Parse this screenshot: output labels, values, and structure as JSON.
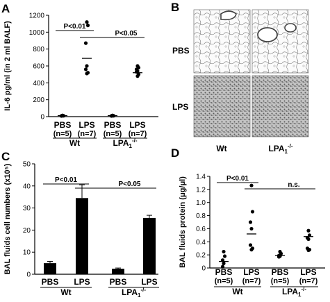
{
  "panels": [
    {
      "letter": "A",
      "chart_data": {
        "type": "scatter",
        "ylabel": "IL-6 pg/ml (in 2 ml BALF)",
        "ylim": [
          0,
          1200
        ],
        "yticks": [
          "0",
          "200",
          "400",
          "600",
          "800",
          "1000",
          "1200"
        ],
        "groups": [
          {
            "label": "PBS",
            "n": "(n=5)",
            "points": [
              15,
              10,
              8,
              12,
              9
            ],
            "mean": 12
          },
          {
            "label": "LPS",
            "n": "(n=7)",
            "points": [
              1120,
              1080,
              870,
              600,
              560,
              520,
              510
            ],
            "mean": 690
          },
          {
            "label": "PBS",
            "n": "(n=5)",
            "points": [
              15,
              10,
              8,
              12,
              9
            ],
            "mean": 12
          },
          {
            "label": "LPS",
            "n": "(n=7)",
            "points": [
              600,
              580,
              560,
              540,
              530,
              500,
              480
            ],
            "mean": 520
          }
        ],
        "genotypes": [
          "Wt",
          "LPA1-/-"
        ],
        "annotations": [
          {
            "text": "P<0.01",
            "between": [
              0,
              1
            ]
          },
          {
            "text": "P<0.05",
            "between": [
              1,
              3
            ]
          }
        ]
      }
    },
    {
      "letter": "B",
      "row_labels": [
        "PBS",
        "LPS"
      ],
      "col_labels": [
        "Wt",
        "LPA1-/-"
      ]
    },
    {
      "letter": "C",
      "chart_data": {
        "type": "bar",
        "ylabel": "BAL fluids cell numbers (x10⁵)",
        "ylim": [
          0,
          50
        ],
        "yticks": [
          "0",
          "10",
          "20",
          "30",
          "40",
          "50"
        ],
        "categories": [
          "PBS",
          "LPS",
          "PBS",
          "LPS"
        ],
        "values": [
          5.0,
          34.5,
          2.5,
          25.5
        ],
        "errors": [
          0.8,
          6.0,
          0.3,
          1.2
        ],
        "genotypes": [
          "Wt",
          "LPA1-/-"
        ],
        "annotations": [
          {
            "text": "P<0.01",
            "between": [
              0,
              1
            ]
          },
          {
            "text": "P<0.05",
            "between": [
              1,
              3
            ]
          }
        ]
      }
    },
    {
      "letter": "D",
      "chart_data": {
        "type": "scatter",
        "ylabel": "BAL fluids protein (μg/μl)",
        "ylim": [
          0,
          1.4
        ],
        "yticks": [
          "0",
          "0.2",
          "0.4",
          "0.6",
          "0.8",
          "1.0",
          "1.2",
          "1.4"
        ],
        "groups": [
          {
            "label": "PBS",
            "n": "(n=5)",
            "points": [
              0.25,
              0.18,
              0.12,
              0.07,
              0.02
            ],
            "mean": 0.1
          },
          {
            "label": "LPS",
            "n": "(n=7)",
            "points": [
              1.26,
              0.86,
              0.7,
              0.6,
              0.35,
              0.3,
              0.28
            ],
            "mean": 0.52
          },
          {
            "label": "PBS",
            "n": "(n=5)",
            "points": [
              0.25,
              0.22,
              0.19,
              0.18,
              0.17
            ],
            "mean": 0.19
          },
          {
            "label": "LPS",
            "n": "(n=7)",
            "points": [
              0.57,
              0.5,
              0.46,
              0.44,
              0.3,
              0.28,
              0.27
            ],
            "mean": 0.48
          }
        ],
        "genotypes": [
          "Wt",
          "LPA1-/-"
        ],
        "annotations": [
          {
            "text": "P<0.01",
            "between": [
              0,
              1
            ]
          },
          {
            "text": "n.s.",
            "between": [
              1,
              3
            ]
          }
        ]
      }
    }
  ]
}
